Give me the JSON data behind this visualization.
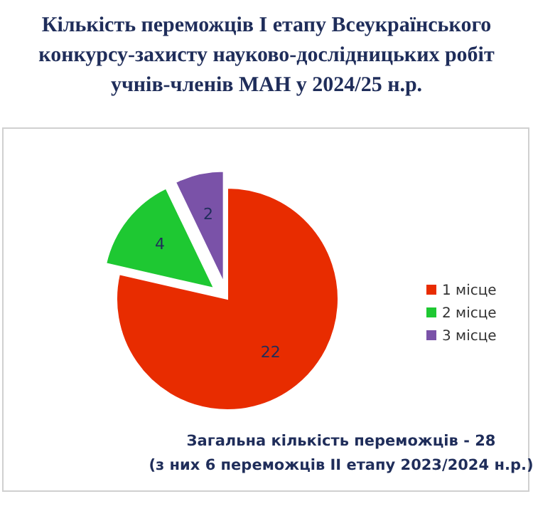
{
  "chart_data": {
    "type": "pie",
    "title": "Кількість переможців І етапу Всеукраїнського конкурсу-захисту науково-дослідницьких робіт учнів-членів МАН у 2024/25 н.р.",
    "categories": [
      "1 місце",
      "2 місце",
      "3 місце"
    ],
    "values": [
      22,
      4,
      2
    ],
    "colors": [
      "#e82c00",
      "#1ec832",
      "#7a52a8"
    ],
    "data_labels": true,
    "legend": "right",
    "annotations": [
      "Загальна кількість переможців - 28",
      "(з них 6 переможців ІІ етапу 2023/2024 н.р.)"
    ]
  }
}
